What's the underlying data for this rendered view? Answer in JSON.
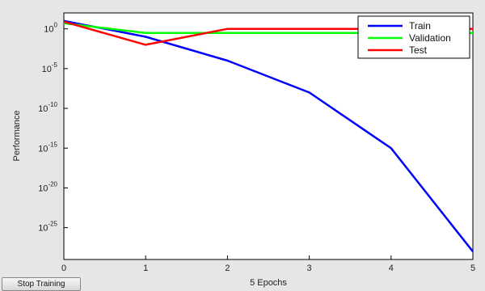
{
  "controls": {
    "stop_label": "Stop Training"
  },
  "chart_data": {
    "type": "line",
    "xlabel": "5 Epochs",
    "ylabel": "Performance",
    "x": [
      0,
      1,
      2,
      3,
      4,
      5
    ],
    "xlim": [
      0,
      5
    ],
    "yscale": "log",
    "ylim_exp": [
      -29,
      2
    ],
    "yticks": [
      "10^0",
      "10^-5",
      "10^-10",
      "10^-15",
      "10^-20",
      "10^-25"
    ],
    "xticks": [
      "0",
      "1",
      "2",
      "3",
      "4",
      "5"
    ],
    "legend_position": "top-right",
    "grid": false,
    "series": [
      {
        "name": "Train",
        "color": "#0000ff",
        "values": [
          10,
          0.1,
          0.0001,
          1e-08,
          1e-15,
          1e-28
        ]
      },
      {
        "name": "Validation",
        "color": "#00ff00",
        "values": [
          5,
          0.3,
          0.3,
          0.3,
          0.3,
          0.3
        ]
      },
      {
        "name": "Test",
        "color": "#ff0000",
        "values": [
          8,
          0.01,
          1,
          1,
          1,
          1
        ]
      }
    ]
  }
}
